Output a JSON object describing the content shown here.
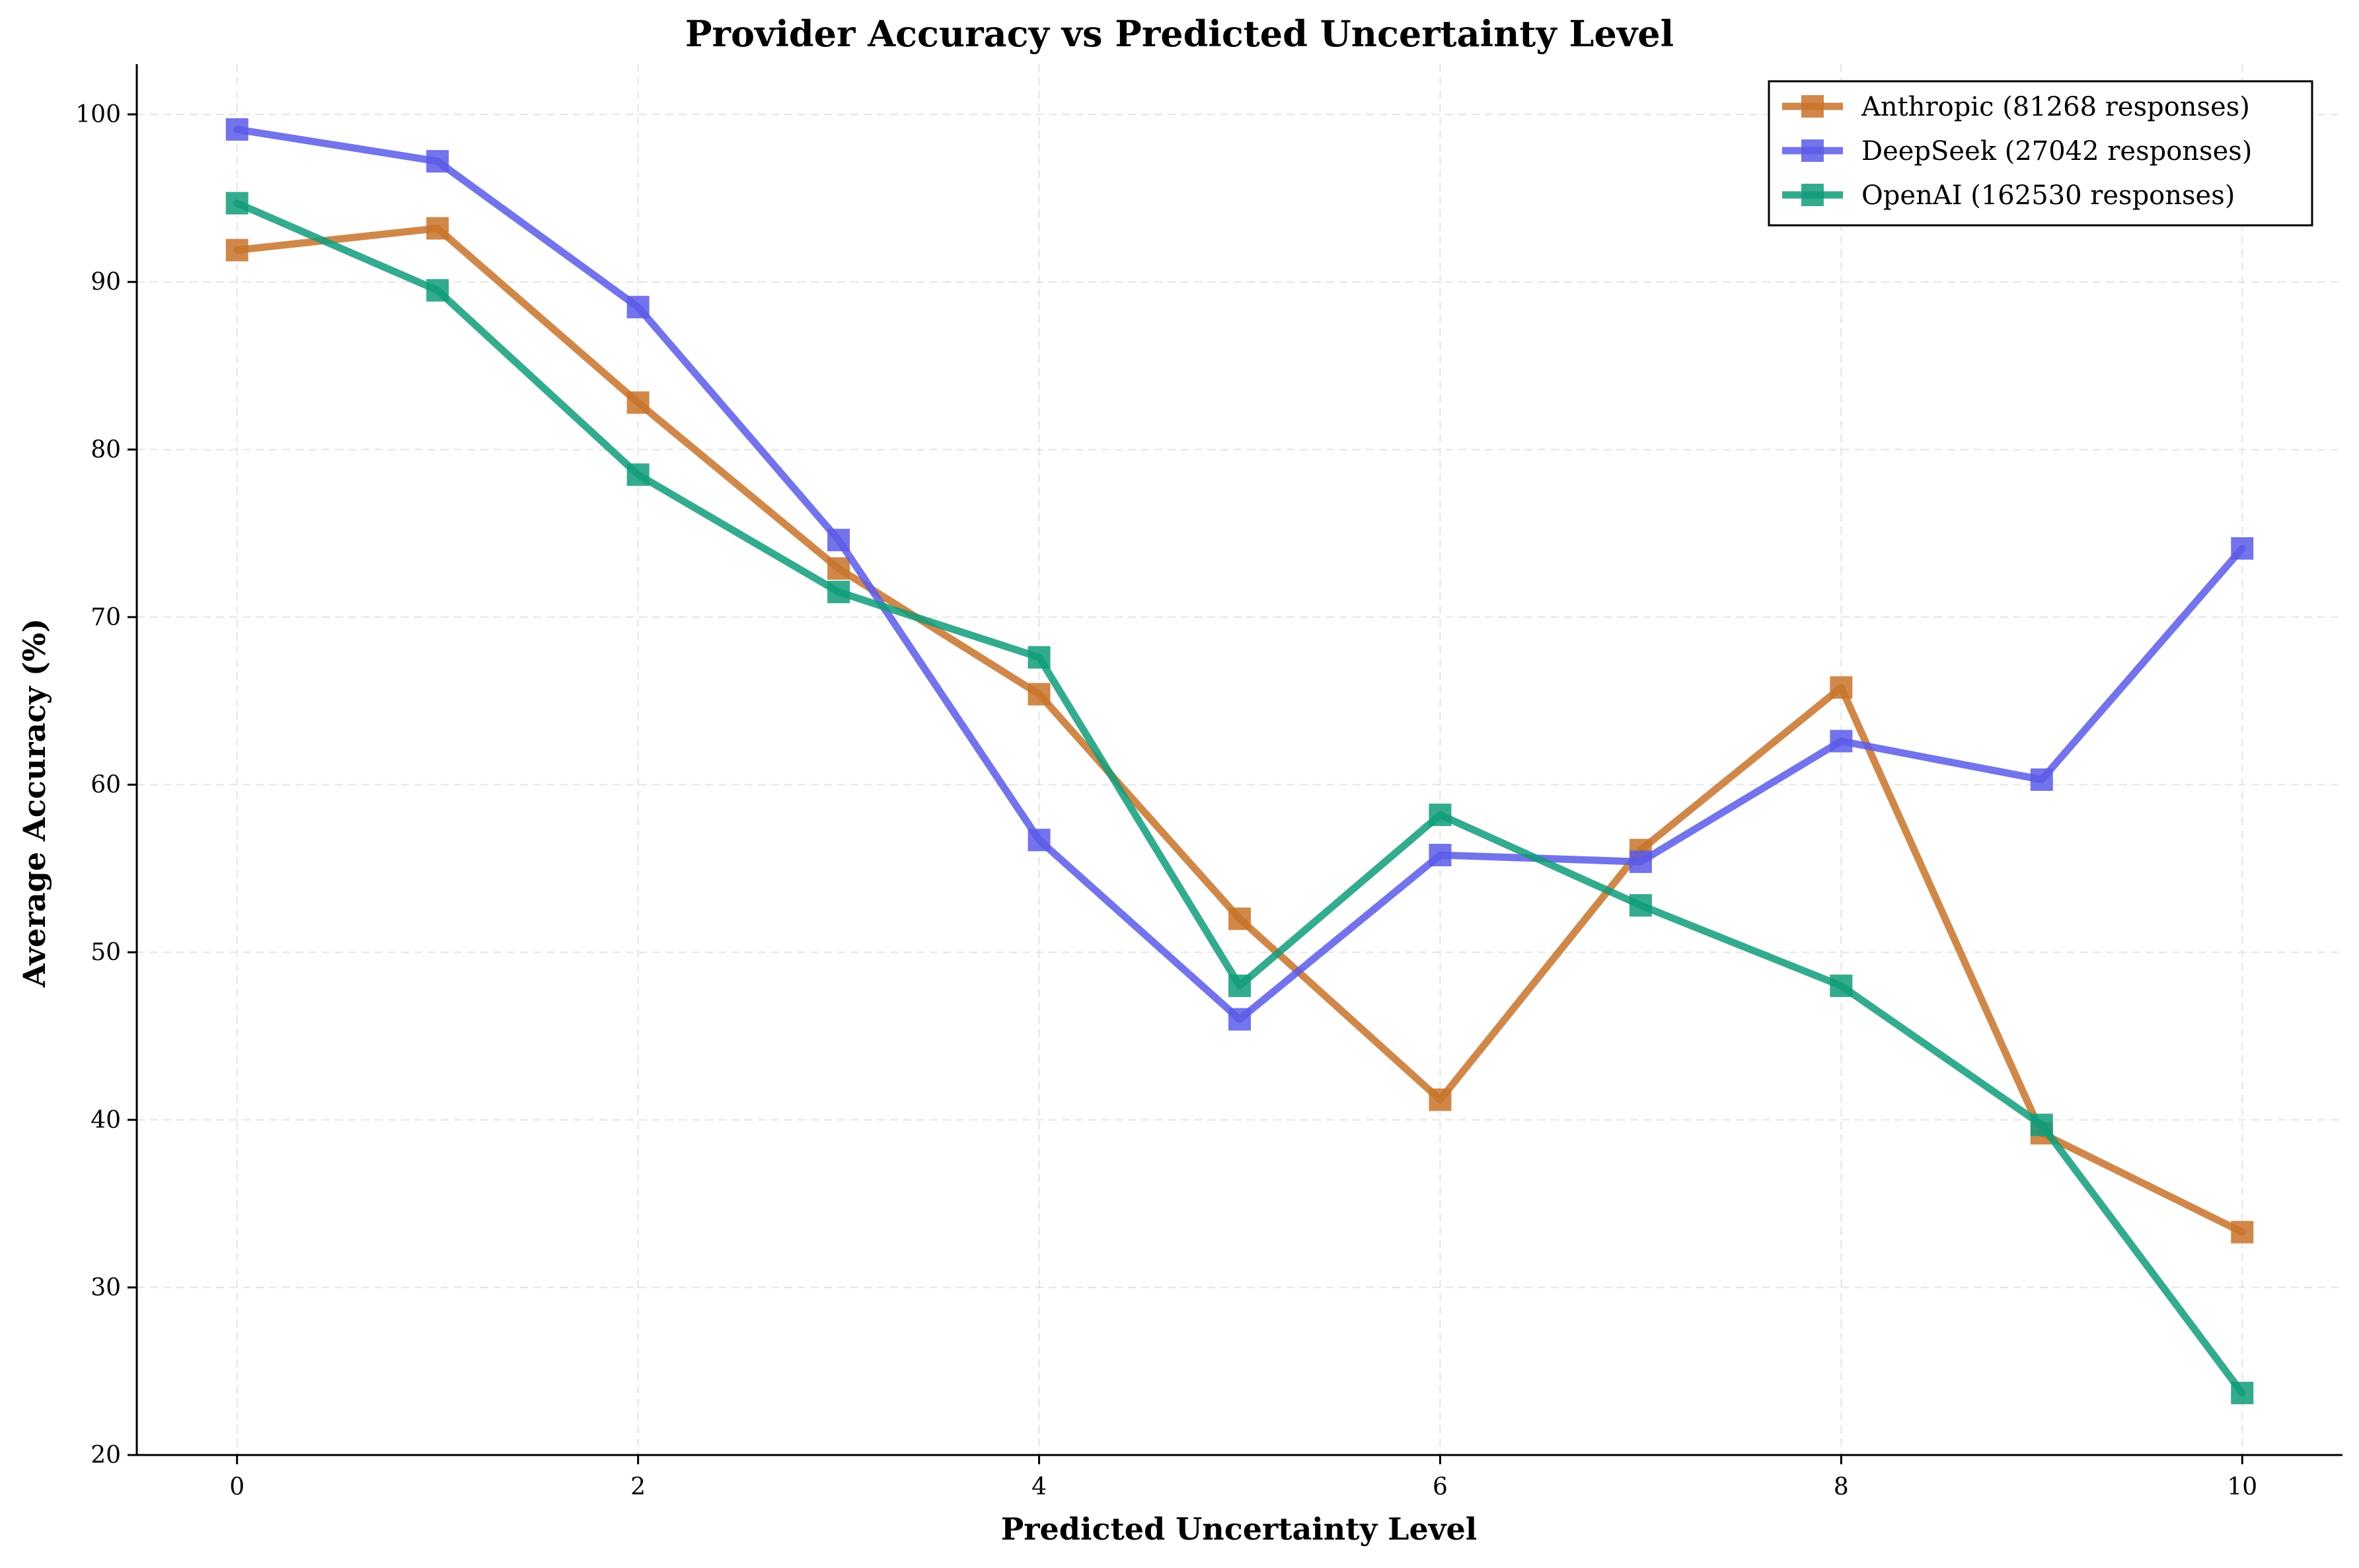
{
  "chart_data": {
    "type": "line",
    "title": "Provider Accuracy vs Predicted Uncertainty Level",
    "xlabel": "Predicted Uncertainty Level",
    "ylabel": "Average Accuracy (%)",
    "xlim": [
      -0.5,
      10.5
    ],
    "ylim": [
      20,
      103
    ],
    "x_ticks": [
      0,
      2,
      4,
      6,
      8,
      10
    ],
    "y_ticks": [
      20,
      30,
      40,
      50,
      60,
      70,
      80,
      90,
      100
    ],
    "grid": true,
    "legend_position": "top-right",
    "x": [
      0,
      1,
      2,
      3,
      4,
      5,
      6,
      7,
      8,
      9,
      10
    ],
    "series": [
      {
        "name": "Anthropic (81268 responses)",
        "color": "#c8732a",
        "marker": "square",
        "values": [
          91.9,
          93.2,
          82.8,
          72.9,
          65.4,
          52.0,
          41.2,
          56.1,
          65.8,
          39.2,
          33.3
        ]
      },
      {
        "name": "DeepSeek (27042 responses)",
        "color": "#5b5be8",
        "marker": "square",
        "values": [
          99.1,
          97.2,
          88.5,
          74.6,
          56.7,
          46.0,
          55.8,
          55.4,
          62.6,
          60.3,
          74.1
        ]
      },
      {
        "name": "OpenAI (162530 responses)",
        "color": "#119c7a",
        "marker": "square",
        "values": [
          94.7,
          89.5,
          78.5,
          71.5,
          67.6,
          48.0,
          58.2,
          52.8,
          48.0,
          39.7,
          23.7
        ]
      }
    ]
  }
}
